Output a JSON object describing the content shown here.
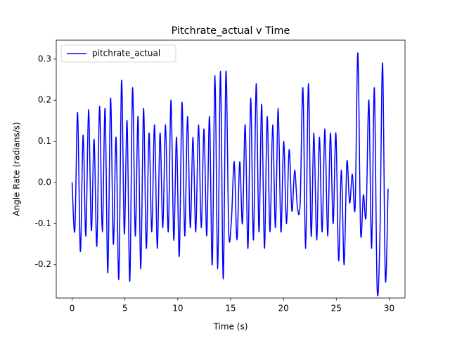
{
  "chart_data": {
    "type": "line",
    "title": "Pitchrate_actual v Time",
    "x_label": "Time (s)",
    "y_label": "Angle Rate (radians/s)",
    "xlim": [
      -1.5,
      31.5
    ],
    "ylim": [
      -0.281,
      0.346
    ],
    "xticks": [
      0,
      5,
      10,
      15,
      20,
      25,
      30
    ],
    "yticks": [
      -0.2,
      -0.1,
      {
        "value": 0,
        "label": "0.0"
      },
      0.1,
      0.2,
      0.3
    ],
    "legend": "upper left",
    "x": [
      0,
      0.26,
      0.52,
      0.78,
      1.04,
      1.3,
      1.56,
      1.82,
      2.08,
      2.34,
      2.6,
      2.86,
      3.12,
      3.38,
      3.64,
      3.9,
      4.16,
      4.42,
      4.68,
      4.94,
      5.2,
      5.46,
      5.72,
      5.98,
      6.24,
      6.5,
      6.76,
      7.02,
      7.28,
      7.54,
      7.8,
      8.06,
      8.32,
      8.58,
      8.84,
      9.1,
      9.36,
      9.62,
      9.88,
      10.14,
      10.4,
      10.66,
      10.92,
      11.18,
      11.44,
      11.7,
      11.96,
      12.22,
      12.48,
      12.74,
      13,
      13.26,
      13.52,
      13.78,
      14.04,
      14.3,
      14.56,
      14.82,
      15.08,
      15.34,
      15.6,
      15.86,
      16.12,
      16.38,
      16.64,
      16.9,
      17.16,
      17.42,
      17.68,
      17.94,
      18.2,
      18.46,
      18.72,
      18.98,
      19.24,
      19.5,
      19.76,
      20.02,
      20.28,
      20.54,
      20.8,
      21.06,
      21.32,
      21.58,
      21.84,
      22.1,
      22.36,
      22.62,
      22.88,
      23.14,
      23.4,
      23.66,
      23.92,
      24.18,
      24.44,
      24.7,
      24.96,
      25.22,
      25.48,
      25.74,
      26,
      26.26,
      26.52,
      26.78,
      27.04,
      27.3,
      27.56,
      27.82,
      28.08,
      28.34,
      28.6,
      28.86,
      29.12,
      29.38,
      29.64,
      29.9
    ],
    "series": [
      {
        "name": "pitchrate_actual",
        "color": "#0000ff",
        "values": [
          0,
          -0.117,
          0.17,
          -0.168,
          0.115,
          -0.13,
          0.177,
          -0.117,
          0.105,
          -0.155,
          0.185,
          -0.12,
          0.18,
          -0.22,
          0.205,
          -0.15,
          0.11,
          -0.235,
          0.248,
          -0.125,
          0.15,
          -0.24,
          0.23,
          -0.13,
          0.16,
          -0.21,
          0.18,
          -0.16,
          0.12,
          -0.12,
          0.14,
          -0.16,
          0.12,
          -0.11,
          0.14,
          -0.12,
          0.2,
          -0.14,
          0.11,
          -0.18,
          0.195,
          -0.13,
          0.16,
          -0.11,
          0.11,
          -0.12,
          0.14,
          -0.11,
          0.13,
          -0.13,
          0.16,
          -0.2,
          0.26,
          -0.21,
          0.27,
          -0.235,
          0.27,
          -0.12,
          -0.09,
          0.05,
          -0.14,
          0.05,
          -0.1,
          0.14,
          -0.16,
          0.205,
          -0.14,
          0.24,
          -0.12,
          0.19,
          -0.16,
          0.16,
          -0.12,
          0.14,
          -0.11,
          0.18,
          -0.12,
          0.1,
          -0.1,
          0.08,
          -0.07,
          0.03,
          -0.06,
          -0.05,
          0.23,
          -0.16,
          0.24,
          -0.13,
          0.12,
          -0.14,
          0.11,
          -0.12,
          0.13,
          -0.13,
          0.12,
          -0.1,
          0.12,
          -0.19,
          0.03,
          -0.2,
          0.05,
          -0.05,
          0.02,
          -0.06,
          0.315,
          -0.12,
          -0.03,
          -0.08,
          0.2,
          -0.16,
          0.23,
          -0.255,
          -0.14,
          0.29,
          -0.235,
          -0.015
        ]
      }
    ]
  }
}
